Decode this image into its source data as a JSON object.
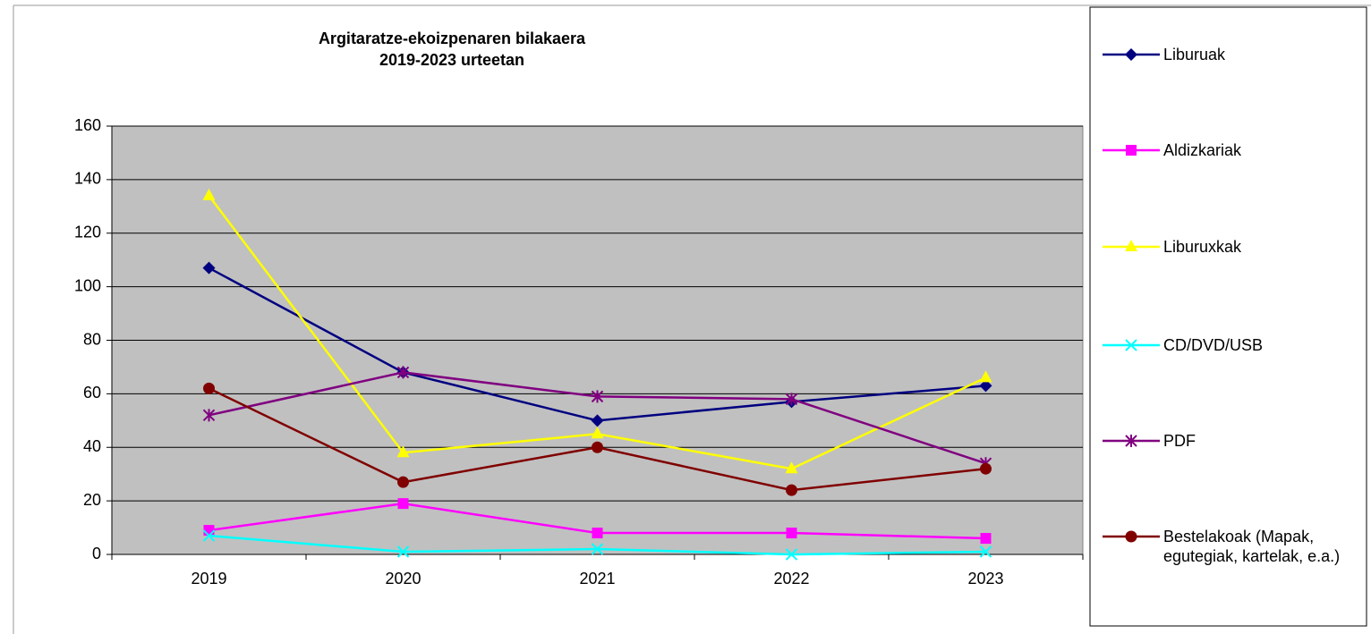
{
  "chart_data": {
    "type": "line",
    "title": [
      "Argitaratze-ekoizpenaren bilakaera",
      "2019-2023 urteetan"
    ],
    "categories": [
      "2019",
      "2020",
      "2021",
      "2022",
      "2023"
    ],
    "series": [
      {
        "name": "Liburuak",
        "color": "#000080",
        "marker": "diamond",
        "values": [
          107,
          68,
          50,
          57,
          63
        ]
      },
      {
        "name": "Aldizkariak",
        "color": "#ff00ff",
        "marker": "square",
        "values": [
          9,
          19,
          8,
          8,
          6
        ]
      },
      {
        "name": "Liburuxkak",
        "color": "#ffff00",
        "marker": "triangle",
        "values": [
          134,
          38,
          45,
          32,
          66
        ]
      },
      {
        "name": "CD/DVD/USB",
        "color": "#00ffff",
        "marker": "x",
        "values": [
          7,
          1,
          2,
          0,
          1
        ]
      },
      {
        "name": "PDF",
        "color": "#800080",
        "marker": "asterisk",
        "values": [
          52,
          68,
          59,
          58,
          34
        ]
      },
      {
        "name": "Bestelakoak  (Mapak, egutegiak, kartelak, e.a.)",
        "color": "#800000",
        "marker": "circle",
        "values": [
          62,
          27,
          40,
          24,
          32
        ]
      }
    ],
    "ylim": [
      0,
      160
    ],
    "yticks": [
      0,
      20,
      40,
      60,
      80,
      100,
      120,
      140,
      160
    ],
    "grid": true,
    "legend": "right"
  }
}
